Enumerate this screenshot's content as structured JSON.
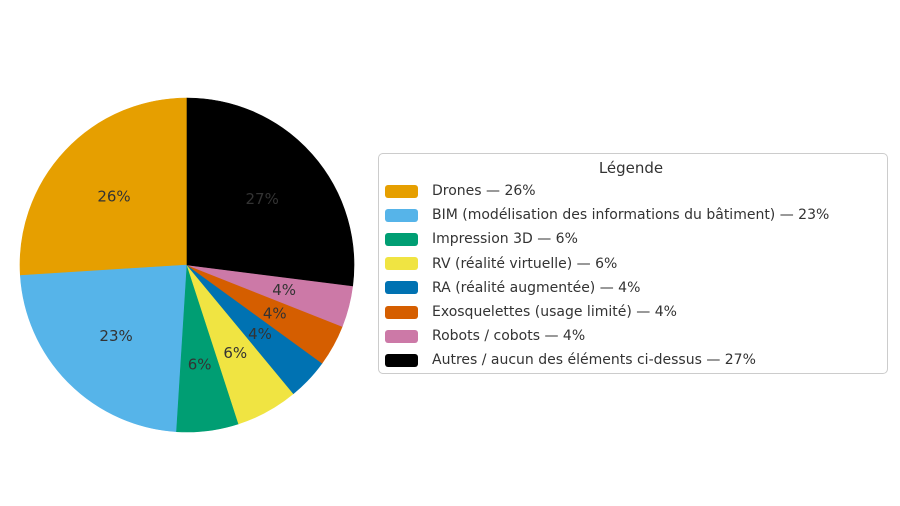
{
  "chart_data": {
    "type": "pie",
    "legend_title": "Légende",
    "start_angle_deg": 90,
    "direction": "counterclockwise",
    "pct_distance": 0.6,
    "label_color": "#333333",
    "legend_position": "center right",
    "background_color": "#ffffff",
    "slices": [
      {
        "label": "Drones",
        "value": 26,
        "pct_label": "26%",
        "color": "#E69F00",
        "legend_label": "Drones — 26%"
      },
      {
        "label": "BIM (modélisation des informations du bâtiment)",
        "value": 23,
        "pct_label": "23%",
        "color": "#56B4E9",
        "legend_label": "BIM (modélisation des informations du bâtiment) — 23%"
      },
      {
        "label": "Impression 3D",
        "value": 6,
        "pct_label": "6%",
        "color": "#009E73",
        "legend_label": "Impression 3D — 6%"
      },
      {
        "label": "RV (réalité virtuelle)",
        "value": 6,
        "pct_label": "6%",
        "color": "#F0E442",
        "legend_label": "RV (réalité virtuelle) — 6%"
      },
      {
        "label": "RA (réalité augmentée)",
        "value": 4,
        "pct_label": "4%",
        "color": "#0072B2",
        "legend_label": "RA (réalité augmentée) — 4%"
      },
      {
        "label": "Exosquelettes (usage limité)",
        "value": 4,
        "pct_label": "4%",
        "color": "#D55E00",
        "legend_label": "Exosquelettes (usage limité) — 4%"
      },
      {
        "label": "Robots / cobots",
        "value": 4,
        "pct_label": "4%",
        "color": "#CC79A7",
        "legend_label": "Robots / cobots — 4%"
      },
      {
        "label": "Autres / aucun des éléments ci-dessus",
        "value": 27,
        "pct_label": "27%",
        "color": "#000000",
        "legend_label": "Autres / aucun des éléments ci-dessus — 27%"
      }
    ]
  }
}
